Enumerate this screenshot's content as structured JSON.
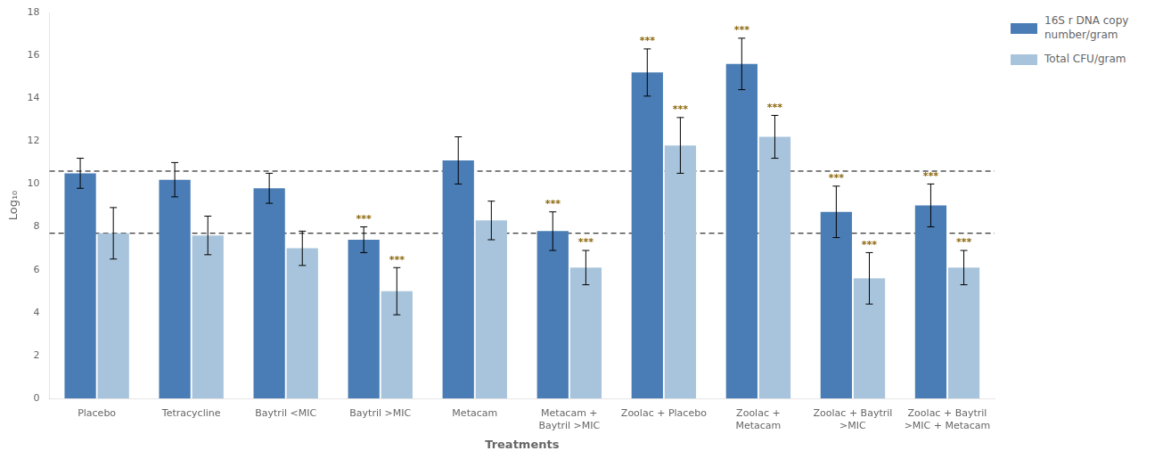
{
  "chart_data": {
    "type": "bar",
    "categories": [
      "Placebo",
      "Tetracycline",
      "Baytril <MIC",
      "Baytril >MIC",
      "Metacam",
      "Metacam +\nBaytril >MIC",
      "Zoolac + Placebo",
      "Zoolac +\nMetacam",
      "Zoolac + Baytril\n>MIC",
      "Zoolac + Baytril\n>MIC + Metacam"
    ],
    "series": [
      {
        "name": "16S r DNA copy\nnumber/gram",
        "color": "#4A7DB5",
        "values": [
          10.5,
          10.2,
          9.8,
          7.4,
          11.1,
          7.8,
          15.2,
          15.6,
          8.7,
          9.0
        ],
        "errors": [
          0.7,
          0.8,
          0.7,
          0.6,
          1.1,
          0.9,
          1.1,
          1.2,
          1.2,
          1.0
        ],
        "significant": [
          false,
          false,
          false,
          true,
          false,
          true,
          true,
          true,
          true,
          true
        ]
      },
      {
        "name": "Total CFU/gram",
        "color": "#A8C4DC",
        "values": [
          7.7,
          7.6,
          7.0,
          5.0,
          8.3,
          6.1,
          11.8,
          12.2,
          5.6,
          6.1
        ],
        "errors": [
          1.2,
          0.9,
          0.8,
          1.1,
          0.9,
          0.8,
          1.3,
          1.0,
          1.2,
          0.8
        ],
        "significant": [
          false,
          false,
          false,
          true,
          false,
          true,
          true,
          true,
          true,
          true
        ]
      }
    ],
    "xlabel": "Treatments",
    "ylabel": "Log₁₀",
    "ylim": [
      0,
      18
    ],
    "yticks": [
      0,
      2,
      4,
      6,
      8,
      10,
      12,
      14,
      16,
      18
    ],
    "grid": false,
    "legend": "upper right",
    "reference_lines": [
      10.6,
      7.7
    ],
    "significance_label": "***",
    "significance_color": "#8B6508"
  }
}
